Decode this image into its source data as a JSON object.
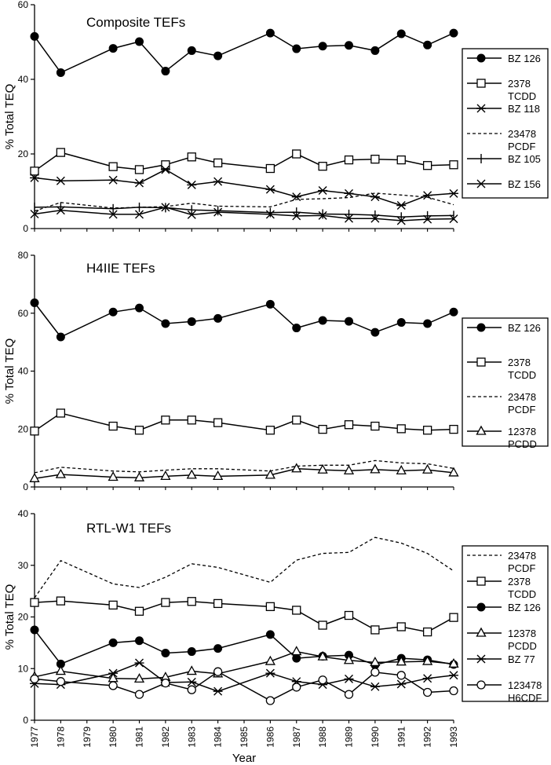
{
  "chart_data": [
    {
      "type": "line",
      "title": "Composite TEFs",
      "ylabel": "% Total TEQ",
      "ylim": [
        0,
        60
      ],
      "yticks": [
        "0",
        "20",
        "40",
        "60"
      ],
      "legend_position": "right",
      "series": [
        {
          "name": "BZ 126",
          "marker": "filled-circle",
          "dash": false,
          "x": [
            1977,
            1978,
            1980,
            1981,
            1982,
            1983,
            1984,
            1986,
            1987,
            1988,
            1989,
            1990,
            1991,
            1992,
            1993
          ],
          "values": [
            51.5,
            41.8,
            48.3,
            50.1,
            42.2,
            47.7,
            46.3,
            52.4,
            48.2,
            48.9,
            49.1,
            47.7,
            52.2,
            49.2,
            52.4
          ]
        },
        {
          "name": "2378 TCDD",
          "marker": "open-square",
          "dash": false,
          "x": [
            1977,
            1978,
            1980,
            1981,
            1982,
            1983,
            1984,
            1986,
            1987,
            1988,
            1989,
            1990,
            1991,
            1992,
            1993
          ],
          "values": [
            15.4,
            20.4,
            16.6,
            15.8,
            17.1,
            19.2,
            17.6,
            16.1,
            20.0,
            16.7,
            18.4,
            18.6,
            18.4,
            16.9,
            17.1
          ]
        },
        {
          "name": "BZ 118",
          "marker": "asterisk",
          "dash": false,
          "x": [
            1977,
            1978,
            1980,
            1981,
            1982,
            1983,
            1984,
            1986,
            1987,
            1988,
            1989,
            1990,
            1991,
            1992,
            1993
          ],
          "values": [
            13.6,
            12.8,
            13.0,
            12.2,
            15.8,
            11.7,
            12.6,
            10.5,
            8.5,
            10.2,
            9.4,
            8.5,
            6.2,
            8.9,
            9.4
          ]
        },
        {
          "name": "23478 PCDF",
          "marker": "none",
          "dash": true,
          "x": [
            1977,
            1978,
            1980,
            1981,
            1982,
            1983,
            1984,
            1986,
            1987,
            1988,
            1989,
            1990,
            1991,
            1992,
            1993
          ],
          "values": [
            4.7,
            7.0,
            5.5,
            5.7,
            5.9,
            6.8,
            6.0,
            5.8,
            7.8,
            8.0,
            8.3,
            9.5,
            9.0,
            8.4,
            6.4
          ]
        },
        {
          "name": "BZ 105",
          "marker": "plus",
          "dash": false,
          "x": [
            1977,
            1978,
            1980,
            1981,
            1982,
            1983,
            1984,
            1986,
            1987,
            1988,
            1989,
            1990,
            1991,
            1992,
            1993
          ],
          "values": [
            5.7,
            5.8,
            5.3,
            5.7,
            5.6,
            5.0,
            4.8,
            4.3,
            4.4,
            3.9,
            3.8,
            3.6,
            3.1,
            3.4,
            3.5
          ]
        },
        {
          "name": "BZ 156",
          "marker": "x",
          "dash": false,
          "x": [
            1977,
            1978,
            1980,
            1981,
            1982,
            1983,
            1984,
            1986,
            1987,
            1988,
            1989,
            1990,
            1991,
            1992,
            1993
          ],
          "values": [
            3.9,
            4.9,
            3.8,
            3.8,
            5.7,
            3.7,
            4.4,
            3.8,
            3.4,
            3.5,
            2.7,
            2.7,
            2.1,
            2.5,
            2.6
          ]
        }
      ]
    },
    {
      "type": "line",
      "title": "H4IIE TEFs",
      "ylabel": "% Total TEQ",
      "ylim": [
        0,
        80
      ],
      "yticks": [
        "0",
        "20",
        "40",
        "60",
        "80"
      ],
      "legend_position": "right",
      "series": [
        {
          "name": "BZ 126",
          "marker": "filled-circle",
          "dash": false,
          "x": [
            1977,
            1978,
            1980,
            1981,
            1982,
            1983,
            1984,
            1986,
            1987,
            1988,
            1989,
            1990,
            1991,
            1992,
            1993
          ],
          "values": [
            63.6,
            51.8,
            60.4,
            61.8,
            56.4,
            57.1,
            58.2,
            63.1,
            54.9,
            57.5,
            57.2,
            53.4,
            56.8,
            56.4,
            60.4
          ]
        },
        {
          "name": "2378 TCDD",
          "marker": "open-square",
          "dash": false,
          "x": [
            1977,
            1978,
            1980,
            1981,
            1982,
            1983,
            1984,
            1986,
            1987,
            1988,
            1989,
            1990,
            1991,
            1992,
            1993
          ],
          "values": [
            19.3,
            25.5,
            21.0,
            19.6,
            23.1,
            23.1,
            22.2,
            19.6,
            23.1,
            19.9,
            21.5,
            21.0,
            20.1,
            19.6,
            19.9
          ]
        },
        {
          "name": "23478 PCDF",
          "marker": "none",
          "dash": true,
          "x": [
            1977,
            1978,
            1980,
            1981,
            1982,
            1983,
            1984,
            1986,
            1987,
            1988,
            1989,
            1990,
            1991,
            1992,
            1993
          ],
          "values": [
            4.9,
            6.8,
            5.5,
            5.2,
            5.8,
            6.3,
            6.3,
            5.5,
            7.2,
            7.5,
            7.5,
            9.1,
            8.3,
            8.0,
            6.4
          ]
        },
        {
          "name": "12378 PCDD",
          "marker": "open-triangle",
          "dash": false,
          "x": [
            1977,
            1978,
            1980,
            1981,
            1982,
            1983,
            1984,
            1986,
            1987,
            1988,
            1989,
            1990,
            1991,
            1992,
            1993
          ],
          "values": [
            2.9,
            4.3,
            3.4,
            3.2,
            3.7,
            4.1,
            3.7,
            4.1,
            6.3,
            5.9,
            5.6,
            6.0,
            5.6,
            5.9,
            4.9
          ]
        }
      ]
    },
    {
      "type": "line",
      "title": "RTL-W1 TEFs",
      "ylabel": "% Total TEQ",
      "xlabel": "Year",
      "ylim": [
        0,
        40
      ],
      "yticks": [
        "0",
        "10",
        "20",
        "30",
        "40"
      ],
      "xticks": [
        "1977",
        "1978",
        "1979",
        "1980",
        "1981",
        "1982",
        "1983",
        "1984",
        "1985",
        "1986",
        "1987",
        "1988",
        "1989",
        "1990",
        "1991",
        "1992",
        "1993"
      ],
      "legend_position": "right",
      "series": [
        {
          "name": "23478 PCDF",
          "marker": "none",
          "dash": true,
          "x": [
            1977,
            1978,
            1980,
            1981,
            1982,
            1983,
            1984,
            1986,
            1987,
            1988,
            1989,
            1990,
            1991,
            1992,
            1993
          ],
          "values": [
            23.7,
            30.9,
            26.4,
            25.7,
            27.7,
            30.3,
            29.6,
            26.7,
            31.0,
            32.3,
            32.5,
            35.4,
            34.3,
            32.3,
            28.9
          ]
        },
        {
          "name": "2378 TCDD",
          "marker": "open-square",
          "dash": false,
          "x": [
            1977,
            1978,
            1980,
            1981,
            1982,
            1983,
            1984,
            1986,
            1987,
            1988,
            1989,
            1990,
            1991,
            1992,
            1993
          ],
          "values": [
            22.8,
            23.1,
            22.3,
            21.1,
            22.8,
            23.0,
            22.6,
            22.0,
            21.3,
            18.4,
            20.3,
            17.5,
            18.1,
            17.1,
            19.9
          ]
        },
        {
          "name": "BZ 126",
          "marker": "filled-circle",
          "dash": false,
          "x": [
            1977,
            1978,
            1980,
            1981,
            1982,
            1983,
            1984,
            1986,
            1987,
            1988,
            1989,
            1990,
            1991,
            1992,
            1993
          ],
          "values": [
            17.5,
            10.9,
            15.0,
            15.4,
            13.0,
            13.3,
            13.9,
            16.6,
            12.0,
            12.4,
            12.6,
            10.7,
            12.0,
            11.7,
            10.8
          ]
        },
        {
          "name": "12378 PCDD",
          "marker": "open-triangle",
          "dash": false,
          "x": [
            1977,
            1978,
            1980,
            1981,
            1982,
            1983,
            1984,
            1986,
            1987,
            1988,
            1989,
            1990,
            1991,
            1992,
            1993
          ],
          "values": [
            8.4,
            9.5,
            8.1,
            8.0,
            8.3,
            9.5,
            9.0,
            11.4,
            13.3,
            12.3,
            11.6,
            11.2,
            11.3,
            11.4,
            10.9
          ]
        },
        {
          "name": "BZ 77",
          "marker": "asterisk",
          "dash": false,
          "x": [
            1977,
            1978,
            1980,
            1981,
            1982,
            1983,
            1984,
            1986,
            1987,
            1988,
            1989,
            1990,
            1991,
            1992,
            1993
          ],
          "values": [
            7.1,
            6.9,
            9.1,
            11.1,
            7.3,
            7.4,
            5.6,
            9.1,
            7.5,
            6.9,
            8.0,
            6.5,
            7.0,
            8.1,
            8.7
          ]
        },
        {
          "name": "123478 H6CDF",
          "marker": "open-circle",
          "dash": false,
          "x": [
            1977,
            1978,
            1980,
            1981,
            1982,
            1983,
            1984,
            1986,
            1987,
            1988,
            1989,
            1990,
            1991,
            1992,
            1993
          ],
          "values": [
            8.0,
            7.5,
            6.7,
            5.0,
            7.2,
            5.9,
            9.4,
            3.8,
            6.4,
            7.8,
            5.0,
            9.3,
            8.7,
            5.4,
            5.7
          ]
        }
      ]
    }
  ]
}
